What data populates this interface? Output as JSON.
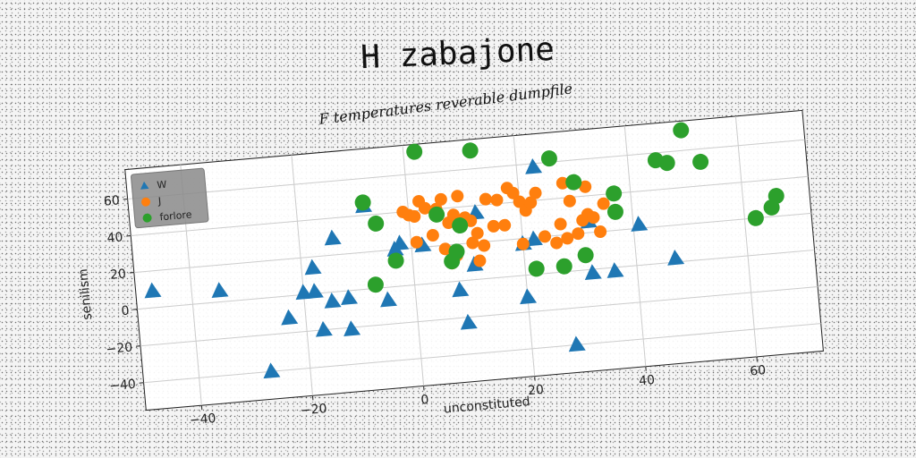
{
  "chart_data": {
    "type": "scatter",
    "title": "H zabajone",
    "subtitle": "F temperatures reverable dumpfile",
    "xlabel": "unconstituted",
    "ylabel": "senilism",
    "xlim": [
      -50,
      72
    ],
    "ylim": [
      -55,
      76
    ],
    "xticks": [
      -40,
      -20,
      0,
      20,
      40,
      60
    ],
    "yticks": [
      -40,
      -20,
      0,
      20,
      40,
      60
    ],
    "grid": true,
    "legend_position": "top-left",
    "series": [
      {
        "name": "W",
        "marker": "triangle",
        "color": "#1f77b4",
        "points": [
          [
            -47,
            9
          ],
          [
            -35,
            6
          ],
          [
            -27,
            -40
          ],
          [
            -23,
            -12
          ],
          [
            -20,
            1
          ],
          [
            -18,
            14
          ],
          [
            -18,
            1
          ],
          [
            -17,
            -20
          ],
          [
            -15,
            -5
          ],
          [
            -14,
            29
          ],
          [
            -12,
            -21
          ],
          [
            -12,
            -4
          ],
          [
            -8,
            45
          ],
          [
            -5,
            -7
          ],
          [
            -3,
            20
          ],
          [
            -2,
            23
          ],
          [
            2,
            21
          ],
          [
            8,
            -5
          ],
          [
            9,
            -23
          ],
          [
            11,
            8
          ],
          [
            12,
            36
          ],
          [
            20,
            -12
          ],
          [
            20,
            17
          ],
          [
            22,
            19
          ],
          [
            23,
            58
          ],
          [
            28,
            -40
          ],
          [
            32,
            -2
          ],
          [
            32,
            26
          ],
          [
            36,
            -2
          ],
          [
            41,
            22
          ],
          [
            47,
            2
          ]
        ]
      },
      {
        "name": "J",
        "marker": "circle",
        "color": "#ff7f0e",
        "points": [
          [
            -1,
            40
          ],
          [
            0,
            38
          ],
          [
            1,
            23
          ],
          [
            1,
            37
          ],
          [
            2,
            45
          ],
          [
            3,
            41
          ],
          [
            4,
            26
          ],
          [
            5,
            40
          ],
          [
            6,
            45
          ],
          [
            6,
            18
          ],
          [
            7,
            10
          ],
          [
            7,
            32
          ],
          [
            8,
            14
          ],
          [
            8,
            36
          ],
          [
            9,
            46
          ],
          [
            10,
            34
          ],
          [
            11,
            20
          ],
          [
            11,
            32
          ],
          [
            12,
            10
          ],
          [
            12,
            25
          ],
          [
            13,
            18
          ],
          [
            14,
            43
          ],
          [
            15,
            28
          ],
          [
            16,
            42
          ],
          [
            17,
            28
          ],
          [
            18,
            48
          ],
          [
            19,
            45
          ],
          [
            20,
            40
          ],
          [
            20,
            17
          ],
          [
            21,
            35
          ],
          [
            22,
            39
          ],
          [
            23,
            44
          ],
          [
            24,
            20
          ],
          [
            26,
            16
          ],
          [
            27,
            26
          ],
          [
            28,
            48
          ],
          [
            28,
            18
          ],
          [
            29,
            38
          ],
          [
            30,
            20
          ],
          [
            31,
            27
          ],
          [
            32,
            45
          ],
          [
            32,
            30
          ],
          [
            33,
            28
          ],
          [
            34,
            20
          ],
          [
            35,
            35
          ]
        ]
      },
      {
        "name": "forlore",
        "marker": "circle",
        "color": "#2ca02c",
        "points": [
          [
            -8,
            47
          ],
          [
            -6,
            35
          ],
          [
            -7,
            2
          ],
          [
            -3,
            14
          ],
          [
            2,
            72
          ],
          [
            5,
            37
          ],
          [
            7,
            11
          ],
          [
            8,
            16
          ],
          [
            9,
            30
          ],
          [
            12,
            70
          ],
          [
            22,
            3
          ],
          [
            26,
            62
          ],
          [
            27,
            3
          ],
          [
            30,
            48
          ],
          [
            31,
            8
          ],
          [
            37,
            40
          ],
          [
            37,
            30
          ],
          [
            45,
            56
          ],
          [
            47,
            54
          ],
          [
            50,
            71
          ],
          [
            53,
            53
          ],
          [
            62,
            20
          ],
          [
            65,
            25
          ],
          [
            66,
            31
          ]
        ]
      }
    ]
  }
}
